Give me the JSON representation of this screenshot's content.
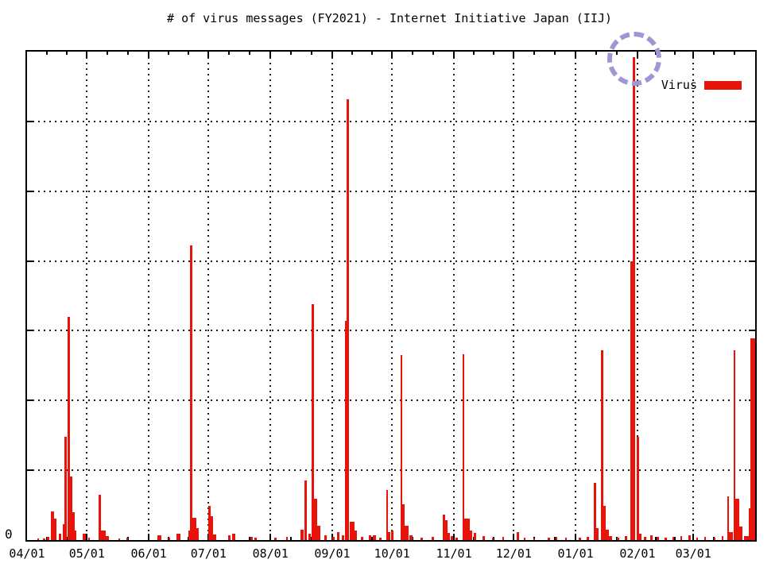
{
  "chart_data": {
    "type": "bar",
    "title": "# of virus messages (FY2021) - Internet Initiative Japan (IIJ)",
    "legend": [
      {
        "label": "Virus",
        "color": "#e8130b"
      }
    ],
    "legend_position": "top-right-inside",
    "grid": "dotted",
    "x_axis": {
      "tick_labels": [
        "04/01",
        "05/01",
        "06/01",
        "07/01",
        "08/01",
        "09/01",
        "10/01",
        "11/01",
        "12/01",
        "01/01",
        "02/01",
        "03/01"
      ],
      "tick_day_offsets": [
        0,
        30,
        61,
        91,
        122,
        153,
        183,
        214,
        244,
        275,
        306,
        334
      ],
      "month_lengths": [
        30,
        31,
        30,
        31,
        31,
        30,
        31,
        30,
        31,
        31,
        28,
        31
      ],
      "days_total": 365,
      "range": "fiscal year: April 1 through March 31"
    },
    "y_axis": {
      "zero_label": "0",
      "min": 0,
      "gridline_divisions": 7,
      "numeric_labels_visible": [
        "0"
      ],
      "note": "only 0 is labeled; bar heights below are % of full y-axis range"
    },
    "bars_format": "[day_offset_from_Apr1, height_pct_of_axis, width_days]",
    "bars": [
      [
        5,
        0.3,
        1
      ],
      [
        8,
        0.4,
        1
      ],
      [
        10,
        0.6,
        1
      ],
      [
        12,
        5.8,
        1.6
      ],
      [
        13.6,
        4.4,
        1.2
      ],
      [
        16,
        1.3,
        1
      ],
      [
        17.8,
        3.2,
        0.8
      ],
      [
        18.7,
        21.1,
        1.2
      ],
      [
        20.2,
        45.7,
        1.2
      ],
      [
        21.4,
        13.0,
        1.2
      ],
      [
        22.6,
        5.7,
        1.2
      ],
      [
        23.8,
        1.9,
        1
      ],
      [
        28,
        1.3,
        1.6
      ],
      [
        30.5,
        0.5,
        0.6
      ],
      [
        35.7,
        9.2,
        1.2
      ],
      [
        36.9,
        1.9,
        2.4
      ],
      [
        39.5,
        0.8,
        1.6
      ],
      [
        46,
        0.4,
        0.8
      ],
      [
        50,
        0.5,
        0.8
      ],
      [
        65.5,
        1.0,
        2
      ],
      [
        71,
        0.5,
        0.8
      ],
      [
        75,
        1.3,
        2
      ],
      [
        81,
        1.9,
        0.8
      ],
      [
        81.8,
        60.3,
        1.2
      ],
      [
        83,
        4.5,
        2
      ],
      [
        85,
        2.4,
        1.2
      ],
      [
        91,
        7.0,
        1.2
      ],
      [
        92.2,
        4.9,
        1.2
      ],
      [
        93.4,
        1.1,
        1.6
      ],
      [
        100.8,
        1.0,
        1.2
      ],
      [
        103,
        1.3,
        1.6
      ],
      [
        112,
        0.6,
        1.2
      ],
      [
        114,
        0.5,
        1.2
      ],
      [
        124,
        0.5,
        1.2
      ],
      [
        130,
        0.6,
        0.8
      ],
      [
        137,
        2.1,
        1.6
      ],
      [
        139,
        12.2,
        1.2
      ],
      [
        141,
        1.3,
        1.2
      ],
      [
        142.6,
        48.3,
        1.2
      ],
      [
        143.8,
        8.4,
        1.6
      ],
      [
        145.4,
        2.9,
        1.6
      ],
      [
        149,
        1.0,
        1.2
      ],
      [
        153,
        0.6,
        1.2
      ],
      [
        155.6,
        1.6,
        1.2
      ],
      [
        157.6,
        1.0,
        1.2
      ],
      [
        159.2,
        44.9,
        0.8
      ],
      [
        160,
        90.3,
        1.4
      ],
      [
        161.6,
        3.7,
        2.4
      ],
      [
        164.2,
        1.9,
        1.2
      ],
      [
        167.5,
        0.6,
        1.2
      ],
      [
        171.5,
        1.0,
        1.2
      ],
      [
        173.5,
        1.0,
        1.6
      ],
      [
        176.4,
        0.5,
        1.2
      ],
      [
        180.2,
        10.2,
        0.8
      ],
      [
        181,
        1.6,
        1.2
      ],
      [
        182.6,
        1.9,
        1.2
      ],
      [
        187.4,
        37.9,
        0.8
      ],
      [
        188.2,
        7.3,
        1.2
      ],
      [
        189.4,
        2.9,
        2
      ],
      [
        191.8,
        1.0,
        1.6
      ],
      [
        197.4,
        0.5,
        1.2
      ],
      [
        203,
        0.6,
        1.2
      ],
      [
        208.4,
        5.2,
        1.2
      ],
      [
        209.6,
        4.1,
        1.2
      ],
      [
        210.8,
        1.5,
        1.2
      ],
      [
        212.4,
        0.8,
        1.2
      ],
      [
        214.8,
        0.5,
        1
      ],
      [
        218.3,
        38.1,
        0.8
      ],
      [
        219.1,
        4.4,
        2.8
      ],
      [
        222,
        1.9,
        1.2
      ],
      [
        224,
        1.5,
        1.2
      ],
      [
        228.3,
        0.8,
        1.2
      ],
      [
        233,
        0.5,
        1
      ],
      [
        238.2,
        0.6,
        1
      ],
      [
        245.3,
        1.6,
        1.2
      ],
      [
        249,
        0.5,
        1
      ],
      [
        253.7,
        0.3,
        1
      ],
      [
        261,
        0.5,
        1
      ],
      [
        264.8,
        0.6,
        1
      ],
      [
        269.6,
        0.5,
        1
      ],
      [
        276.7,
        0.5,
        1
      ],
      [
        280.7,
        0.6,
        1
      ],
      [
        284,
        11.7,
        1.2
      ],
      [
        285.2,
        2.4,
        1.2
      ],
      [
        287.5,
        38.9,
        1.2
      ],
      [
        288.7,
        7.0,
        1.2
      ],
      [
        289.9,
        2.1,
        1.6
      ],
      [
        291.8,
        0.8,
        1.6
      ],
      [
        295.8,
        0.5,
        1
      ],
      [
        299.8,
        0.8,
        1.2
      ],
      [
        302.5,
        57.1,
        1.2
      ],
      [
        303.7,
        98.9,
        1.2
      ],
      [
        305.7,
        21.1,
        1.2
      ],
      [
        306.9,
        1.3,
        1.2
      ],
      [
        309.3,
        0.6,
        1
      ],
      [
        312.5,
        1.0,
        1.2
      ],
      [
        315.6,
        0.6,
        1
      ],
      [
        319.6,
        0.5,
        1
      ],
      [
        323.5,
        0.6,
        1
      ],
      [
        327.5,
        0.8,
        1
      ],
      [
        331.5,
        1.0,
        1.2
      ],
      [
        335.4,
        0.5,
        1
      ],
      [
        339.4,
        0.6,
        1
      ],
      [
        344.2,
        0.5,
        1
      ],
      [
        348.2,
        0.8,
        1
      ],
      [
        351,
        8.9,
        0.8
      ],
      [
        352,
        1.6,
        2
      ],
      [
        354.1,
        38.9,
        0.8
      ],
      [
        355,
        8.4,
        2
      ],
      [
        357,
        2.8,
        1.6
      ],
      [
        359.3,
        0.8,
        2.4
      ],
      [
        361.7,
        6.5,
        0.8
      ],
      [
        362.5,
        41.3,
        2.4
      ]
    ],
    "annotation": {
      "shape": "dashed-circle",
      "color": "#9d97d4",
      "target": "tallest spike, just before 02/01",
      "day": 303.7,
      "radius_px": 28
    }
  }
}
